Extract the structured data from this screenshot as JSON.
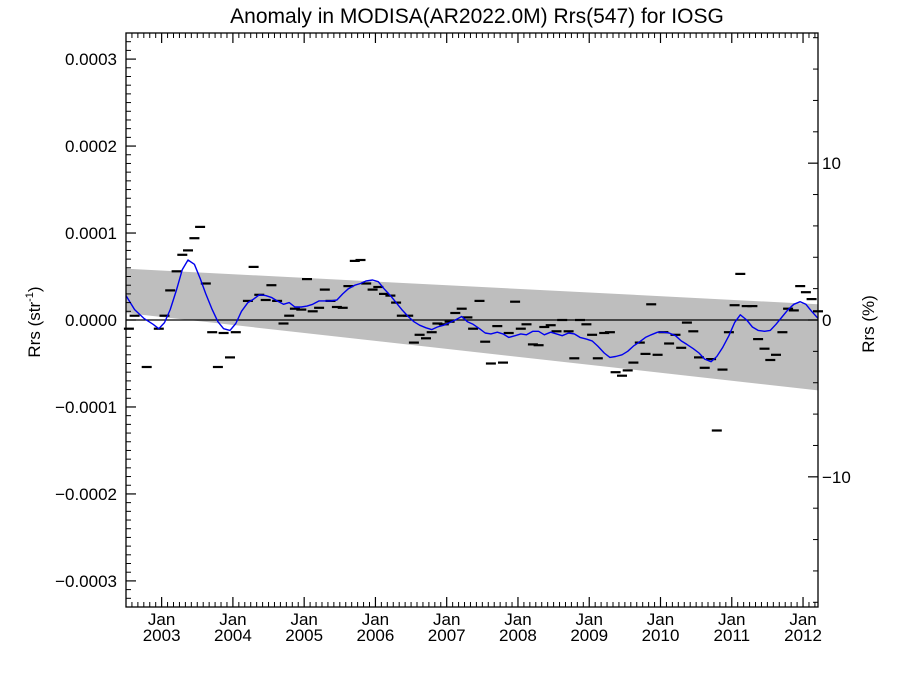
{
  "chart_data": {
    "type": "line",
    "title": "Anomaly in MODISA(AR2022.0M) Rrs(547) for IOSG",
    "ylabel_main": "Rrs (str",
    "ylabel_sup": "-1",
    "ylabel_close": ")",
    "y2label": "Rrs (%)",
    "xlim": [
      2002.5,
      2012.21
    ],
    "ylim": [
      -0.00033,
      0.00033
    ],
    "y2lim": [
      -18.3,
      18.3
    ],
    "yticks": [
      -0.0003,
      -0.0002,
      -0.0001,
      0.0,
      0.0001,
      0.0002,
      0.0003
    ],
    "ytick_labels": [
      "−0.0003",
      "−0.0002",
      "−0.0001",
      "0.0000",
      "0.0001",
      "0.0002",
      "0.0003"
    ],
    "y2ticks": [
      -10,
      0,
      10
    ],
    "y2tick_labels": [
      "−10",
      "0",
      "10"
    ],
    "xticks": [
      2003,
      2004,
      2005,
      2006,
      2007,
      2008,
      2009,
      2010,
      2011,
      2012
    ],
    "xtick_top": "Jan",
    "xtick_years": [
      "2003",
      "2004",
      "2005",
      "2006",
      "2007",
      "2008",
      "2009",
      "2010",
      "2011",
      "2012"
    ],
    "band": {
      "color": "#bebebe",
      "upper": [
        [
          2002.5,
          5.9e-05
        ],
        [
          2012.21,
          1.8e-05
        ]
      ],
      "lower": [
        [
          2002.5,
          8e-06
        ],
        [
          2012.21,
          -8.1e-05
        ]
      ]
    },
    "zero_line": true,
    "series": [
      {
        "color": "#0000ee",
        "points": [
          [
            2002.5,
            2.8e-05
          ],
          [
            2002.62,
            1.2e-05
          ],
          [
            2002.75,
            2e-06
          ],
          [
            2002.88,
            -5e-06
          ],
          [
            2002.96,
            -1e-05
          ],
          [
            2003.04,
            -3e-06
          ],
          [
            2003.12,
            1.2e-05
          ],
          [
            2003.21,
            3.5e-05
          ],
          [
            2003.29,
            5.8e-05
          ],
          [
            2003.37,
            6.9e-05
          ],
          [
            2003.46,
            6.4e-05
          ],
          [
            2003.54,
            4.8e-05
          ],
          [
            2003.62,
            3e-05
          ],
          [
            2003.71,
            1.2e-05
          ],
          [
            2003.79,
            -2e-06
          ],
          [
            2003.87,
            -1e-05
          ],
          [
            2003.96,
            -1.2e-05
          ],
          [
            2004.04,
            -4e-06
          ],
          [
            2004.12,
            1e-05
          ],
          [
            2004.21,
            2e-05
          ],
          [
            2004.29,
            2.4e-05
          ],
          [
            2004.37,
            2.9e-05
          ],
          [
            2004.46,
            2.8e-05
          ],
          [
            2004.54,
            2.6e-05
          ],
          [
            2004.62,
            2.2e-05
          ],
          [
            2004.71,
            1.8e-05
          ],
          [
            2004.79,
            2e-05
          ],
          [
            2004.87,
            1.5e-05
          ],
          [
            2004.96,
            1.5e-05
          ],
          [
            2005.04,
            1.6e-05
          ],
          [
            2005.12,
            1.8e-05
          ],
          [
            2005.21,
            2.2e-05
          ],
          [
            2005.29,
            2.2e-05
          ],
          [
            2005.37,
            2.2e-05
          ],
          [
            2005.46,
            2.3e-05
          ],
          [
            2005.54,
            3e-05
          ],
          [
            2005.62,
            3.6e-05
          ],
          [
            2005.71,
            4e-05
          ],
          [
            2005.79,
            4.2e-05
          ],
          [
            2005.87,
            4.5e-05
          ],
          [
            2005.96,
            4.6e-05
          ],
          [
            2006.04,
            4.4e-05
          ],
          [
            2006.12,
            3.6e-05
          ],
          [
            2006.21,
            2.8e-05
          ],
          [
            2006.29,
            2e-05
          ],
          [
            2006.37,
            1.2e-05
          ],
          [
            2006.46,
            4e-06
          ],
          [
            2006.54,
            -2e-06
          ],
          [
            2006.62,
            -6e-06
          ],
          [
            2006.71,
            -9e-06
          ],
          [
            2006.79,
            -1.1e-05
          ],
          [
            2006.87,
            -8e-06
          ],
          [
            2006.96,
            -6e-06
          ],
          [
            2007.04,
            -3e-06
          ],
          [
            2007.12,
            0.0
          ],
          [
            2007.21,
            4e-06
          ],
          [
            2007.29,
            -2e-06
          ],
          [
            2007.37,
            -5e-06
          ],
          [
            2007.46,
            -1e-05
          ],
          [
            2007.54,
            -1.5e-05
          ],
          [
            2007.62,
            -1.6e-05
          ],
          [
            2007.71,
            -1.4e-05
          ],
          [
            2007.79,
            -1.6e-05
          ],
          [
            2007.87,
            -2e-05
          ],
          [
            2007.96,
            -1.8e-05
          ],
          [
            2008.04,
            -1.6e-05
          ],
          [
            2008.12,
            -1.7e-05
          ],
          [
            2008.21,
            -1.3e-05
          ],
          [
            2008.29,
            -1.3e-05
          ],
          [
            2008.37,
            -1.7e-05
          ],
          [
            2008.46,
            -1.4e-05
          ],
          [
            2008.54,
            -1.6e-05
          ],
          [
            2008.62,
            -1.8e-05
          ],
          [
            2008.71,
            -1.5e-05
          ],
          [
            2008.79,
            -1.6e-05
          ],
          [
            2008.87,
            -2e-05
          ],
          [
            2008.96,
            -2.2e-05
          ],
          [
            2009.04,
            -2.4e-05
          ],
          [
            2009.12,
            -3e-05
          ],
          [
            2009.21,
            -3.8e-05
          ],
          [
            2009.29,
            -4.3e-05
          ],
          [
            2009.37,
            -4.2e-05
          ],
          [
            2009.46,
            -4e-05
          ],
          [
            2009.54,
            -3.6e-05
          ],
          [
            2009.62,
            -3e-05
          ],
          [
            2009.71,
            -2.5e-05
          ],
          [
            2009.79,
            -2e-05
          ],
          [
            2009.87,
            -1.7e-05
          ],
          [
            2009.96,
            -1.4e-05
          ],
          [
            2010.04,
            -1.4e-05
          ],
          [
            2010.12,
            -1.5e-05
          ],
          [
            2010.21,
            -1.8e-05
          ],
          [
            2010.29,
            -2.4e-05
          ],
          [
            2010.37,
            -2.8e-05
          ],
          [
            2010.46,
            -3.3e-05
          ],
          [
            2010.54,
            -3.8e-05
          ],
          [
            2010.62,
            -4.5e-05
          ],
          [
            2010.71,
            -4.8e-05
          ],
          [
            2010.79,
            -4.2e-05
          ],
          [
            2010.87,
            -3.2e-05
          ],
          [
            2010.96,
            -1.8e-05
          ],
          [
            2011.04,
            -3e-06
          ],
          [
            2011.12,
            6e-06
          ],
          [
            2011.21,
            0.0
          ],
          [
            2011.29,
            -8e-06
          ],
          [
            2011.37,
            -1.2e-05
          ],
          [
            2011.46,
            -1.3e-05
          ],
          [
            2011.54,
            -1.2e-05
          ],
          [
            2011.62,
            -5e-06
          ],
          [
            2011.71,
            4e-06
          ],
          [
            2011.79,
            1.2e-05
          ],
          [
            2011.87,
            1.8e-05
          ],
          [
            2011.96,
            2.1e-05
          ],
          [
            2012.04,
            1.8e-05
          ],
          [
            2012.12,
            1e-05
          ],
          [
            2012.21,
            2e-06
          ]
        ]
      }
    ],
    "monthly_markers": [
      [
        2002.54,
        -1e-05
      ],
      [
        2002.62,
        5e-06
      ],
      [
        2002.79,
        -5.4e-05
      ],
      [
        2002.96,
        -1e-05
      ],
      [
        2003.04,
        5e-06
      ],
      [
        2003.12,
        3.4e-05
      ],
      [
        2003.21,
        5.6e-05
      ],
      [
        2003.29,
        7.5e-05
      ],
      [
        2003.37,
        8e-05
      ],
      [
        2003.46,
        9.4e-05
      ],
      [
        2003.54,
        0.000107
      ],
      [
        2003.62,
        4.2e-05
      ],
      [
        2003.71,
        -1.4e-05
      ],
      [
        2003.79,
        -5.4e-05
      ],
      [
        2003.87,
        -1.5e-05
      ],
      [
        2003.96,
        -4.3e-05
      ],
      [
        2004.04,
        -1.4e-05
      ],
      [
        2004.21,
        2.2e-05
      ],
      [
        2004.29,
        6.1e-05
      ],
      [
        2004.37,
        2.9e-05
      ],
      [
        2004.46,
        2.3e-05
      ],
      [
        2004.54,
        4e-05
      ],
      [
        2004.62,
        2.2e-05
      ],
      [
        2004.71,
        -4e-06
      ],
      [
        2004.79,
        5e-06
      ],
      [
        2004.87,
        1.3e-05
      ],
      [
        2004.96,
        1.2e-05
      ],
      [
        2005.04,
        4.7e-05
      ],
      [
        2005.12,
        1e-05
      ],
      [
        2005.21,
        1.4e-05
      ],
      [
        2005.29,
        3.5e-05
      ],
      [
        2005.37,
        2.2e-05
      ],
      [
        2005.46,
        1.5e-05
      ],
      [
        2005.54,
        1.4e-05
      ],
      [
        2005.62,
        3.9e-05
      ],
      [
        2005.71,
        6.8e-05
      ],
      [
        2005.79,
        6.9e-05
      ],
      [
        2005.87,
        4.2e-05
      ],
      [
        2005.96,
        3.5e-05
      ],
      [
        2006.04,
        3.8e-05
      ],
      [
        2006.12,
        3e-05
      ],
      [
        2006.21,
        2.8e-05
      ],
      [
        2006.29,
        2e-05
      ],
      [
        2006.37,
        5e-06
      ],
      [
        2006.46,
        5e-06
      ],
      [
        2006.54,
        -2.6e-05
      ],
      [
        2006.62,
        -1.7e-05
      ],
      [
        2006.71,
        -2.1e-05
      ],
      [
        2006.79,
        -1.4e-05
      ],
      [
        2006.87,
        -4e-06
      ],
      [
        2006.96,
        -5e-06
      ],
      [
        2007.04,
        -2e-06
      ],
      [
        2007.12,
        8e-06
      ],
      [
        2007.21,
        1.3e-05
      ],
      [
        2007.29,
        3e-06
      ],
      [
        2007.37,
        -1e-05
      ],
      [
        2007.46,
        2.2e-05
      ],
      [
        2007.54,
        -2.5e-05
      ],
      [
        2007.62,
        -5e-05
      ],
      [
        2007.71,
        -7e-06
      ],
      [
        2007.79,
        -4.9e-05
      ],
      [
        2007.87,
        -1.5e-05
      ],
      [
        2007.96,
        2.1e-05
      ],
      [
        2008.04,
        -1e-05
      ],
      [
        2008.12,
        -5e-06
      ],
      [
        2008.21,
        -2.8e-05
      ],
      [
        2008.29,
        -2.9e-05
      ],
      [
        2008.37,
        -8e-06
      ],
      [
        2008.46,
        -6e-06
      ],
      [
        2008.54,
        -1.3e-05
      ],
      [
        2008.62,
        0.0
      ],
      [
        2008.71,
        -1.3e-05
      ],
      [
        2008.79,
        -4.4e-05
      ],
      [
        2008.87,
        0.0
      ],
      [
        2008.96,
        -5e-06
      ],
      [
        2009.04,
        -1.7e-05
      ],
      [
        2009.12,
        -4.4e-05
      ],
      [
        2009.21,
        -1.5e-05
      ],
      [
        2009.29,
        -1.4e-05
      ],
      [
        2009.37,
        -6e-05
      ],
      [
        2009.46,
        -6.4e-05
      ],
      [
        2009.54,
        -5.8e-05
      ],
      [
        2009.62,
        -4.9e-05
      ],
      [
        2009.71,
        -2.6e-05
      ],
      [
        2009.79,
        -3.9e-05
      ],
      [
        2009.87,
        1.8e-05
      ],
      [
        2009.96,
        -4e-05
      ],
      [
        2010.04,
        -1.4e-05
      ],
      [
        2010.12,
        -2.7e-05
      ],
      [
        2010.21,
        -1.7e-05
      ],
      [
        2010.29,
        -3.2e-05
      ],
      [
        2010.37,
        -3e-06
      ],
      [
        2010.46,
        -1.3e-05
      ],
      [
        2010.54,
        -4.3e-05
      ],
      [
        2010.62,
        -5.5e-05
      ],
      [
        2010.71,
        -4.5e-05
      ],
      [
        2010.79,
        -0.000127
      ],
      [
        2010.87,
        -5.7e-05
      ],
      [
        2010.96,
        -1.4e-05
      ],
      [
        2011.04,
        1.7e-05
      ],
      [
        2011.12,
        5.3e-05
      ],
      [
        2011.21,
        1.6e-05
      ],
      [
        2011.29,
        1.6e-05
      ],
      [
        2011.37,
        -2.2e-05
      ],
      [
        2011.46,
        -3.3e-05
      ],
      [
        2011.54,
        -4.6e-05
      ],
      [
        2011.62,
        -4e-05
      ],
      [
        2011.71,
        -1.4e-05
      ],
      [
        2011.79,
        1.3e-05
      ],
      [
        2011.87,
        1.1e-05
      ],
      [
        2011.96,
        3.9e-05
      ],
      [
        2012.04,
        3.2e-05
      ],
      [
        2012.12,
        2.4e-05
      ],
      [
        2012.21,
        1e-05
      ]
    ]
  }
}
